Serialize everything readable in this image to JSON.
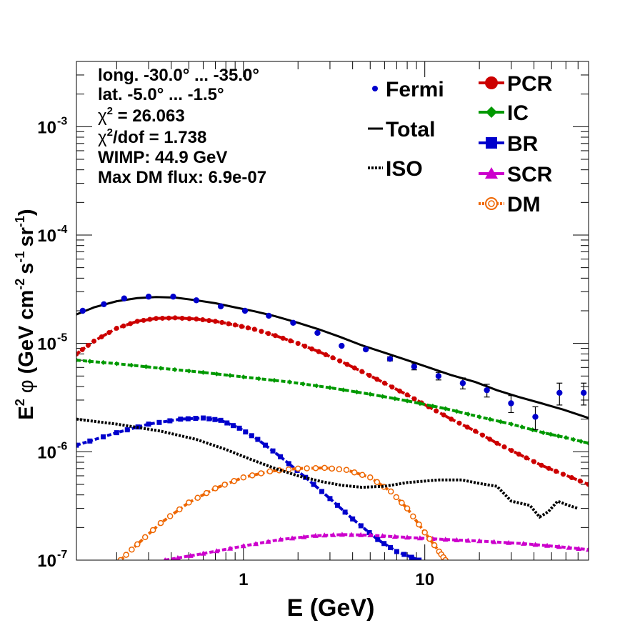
{
  "chart_data": {
    "type": "scatter",
    "xscale": "log",
    "yscale": "log",
    "xlim": [
      0.12,
      80
    ],
    "ylim": [
      1e-07,
      0.004
    ],
    "xlabel": "E (GeV)",
    "ylabel": {
      "e_label": "E",
      "e_sup": "2",
      "phi": "φ",
      "units_open": "(GeV cm",
      "cm_sup": "-2",
      "s_part": "s",
      "s_sup": "-1",
      "sr_part": "sr",
      "sr_sup": "-1",
      "close": ")"
    },
    "x_ticks": [
      {
        "value": 1,
        "label": "1"
      },
      {
        "value": 10,
        "label": "10"
      }
    ],
    "y_ticks": [
      {
        "value": 1e-07,
        "base": "10",
        "exp": "-7"
      },
      {
        "value": 1e-06,
        "base": "10",
        "exp": "-6"
      },
      {
        "value": 1e-05,
        "base": "10",
        "exp": "-5"
      },
      {
        "value": 0.0001,
        "base": "10",
        "exp": "-4"
      },
      {
        "value": 0.001,
        "base": "10",
        "exp": "-3"
      }
    ],
    "annotations": [
      {
        "text": "long. -30.0° ... -35.0°"
      },
      {
        "text": "lat. -5.0° ... -1.5°"
      },
      {
        "pre": "χ",
        "sup": "2",
        "post": " = 26.063"
      },
      {
        "pre": "χ",
        "sup": "2",
        "post": "/dof = 1.738"
      },
      {
        "text": "WIMP: 44.9 GeV"
      },
      {
        "text": "Max DM flux: 6.9e-07"
      }
    ],
    "legend_left": [
      {
        "key": "Fermi",
        "label": "Fermi"
      },
      {
        "key": "Total",
        "label": "Total"
      },
      {
        "key": "ISO",
        "label": "ISO"
      }
    ],
    "legend_right": [
      {
        "key": "PCR",
        "label": "PCR"
      },
      {
        "key": "IC",
        "label": "IC"
      },
      {
        "key": "BR",
        "label": "BR"
      },
      {
        "key": "SCR",
        "label": "SCR"
      },
      {
        "key": "DM",
        "label": "DM"
      }
    ],
    "fermi": {
      "color": "#0000cc",
      "x": [
        0.13,
        0.17,
        0.22,
        0.3,
        0.41,
        0.55,
        0.75,
        1.02,
        1.38,
        1.88,
        2.56,
        3.48,
        4.73,
        6.43,
        8.74,
        11.9,
        16.2,
        22.0,
        29.9,
        40.7,
        55.3,
        75.2
      ],
      "y": [
        2e-05,
        2.3e-05,
        2.6e-05,
        2.7e-05,
        2.7e-05,
        2.5e-05,
        2.2e-05,
        2e-05,
        1.8e-05,
        1.55e-05,
        1.25e-05,
        9.5e-06,
        8.8e-06,
        7.2e-06,
        6.1e-06,
        5e-06,
        4.3e-06,
        3.7e-06,
        2.8e-06,
        2.1e-06,
        3.5e-06,
        3.5e-06
      ],
      "err": [
        0,
        0,
        0,
        0,
        0,
        0,
        0,
        0,
        0,
        0,
        0,
        0,
        0,
        3e-07,
        4e-07,
        4e-07,
        5e-07,
        5e-07,
        5e-07,
        5e-07,
        8e-07,
        8e-07
      ]
    },
    "series": [
      {
        "name": "Total",
        "color": "#000000",
        "style": "solid",
        "marker": "none",
        "x": [
          0.12,
          0.15,
          0.2,
          0.26,
          0.33,
          0.42,
          0.55,
          0.7,
          0.9,
          1.15,
          1.5,
          2.0,
          2.6,
          3.4,
          4.5,
          6.0,
          8.0,
          10.5,
          14,
          19,
          25,
          33,
          44,
          58,
          80
        ],
        "y": [
          1.85e-05,
          2.15e-05,
          2.45e-05,
          2.62e-05,
          2.68e-05,
          2.65e-05,
          2.5e-05,
          2.35e-05,
          2.15e-05,
          1.98e-05,
          1.78e-05,
          1.55e-05,
          1.35e-05,
          1.15e-05,
          9.6e-06,
          8.2e-06,
          7e-06,
          6e-06,
          5.1e-06,
          4.4e-06,
          3.7e-06,
          3.2e-06,
          2.8e-06,
          2.45e-06,
          2.05e-06
        ]
      },
      {
        "name": "PCR",
        "color": "#cc0000",
        "style": "dashed",
        "marker": "circle",
        "x": [
          0.12,
          0.15,
          0.2,
          0.26,
          0.33,
          0.42,
          0.55,
          0.7,
          0.9,
          1.15,
          1.5,
          2.0,
          2.6,
          3.4,
          4.5,
          6.0,
          8.0,
          10.5,
          14,
          19,
          25,
          33,
          44,
          58,
          80
        ],
        "y": [
          8e-06,
          1.05e-05,
          1.38e-05,
          1.6e-05,
          1.7e-05,
          1.72e-05,
          1.68e-05,
          1.6e-05,
          1.48e-05,
          1.35e-05,
          1.18e-05,
          1e-05,
          8.4e-06,
          6.9e-06,
          5.5e-06,
          4.3e-06,
          3.35e-06,
          2.6e-06,
          2e-06,
          1.55e-06,
          1.2e-06,
          9.5e-07,
          7.5e-07,
          6.2e-07,
          5e-07
        ]
      },
      {
        "name": "IC",
        "color": "#009900",
        "style": "dashed",
        "marker": "diamond",
        "x": [
          0.12,
          0.2,
          0.35,
          0.6,
          1.0,
          1.8,
          3.0,
          5.0,
          8.0,
          13,
          20,
          30,
          45,
          60,
          80
        ],
        "y": [
          7e-06,
          6.5e-06,
          5.9e-06,
          5.4e-06,
          4.9e-06,
          4.4e-06,
          3.9e-06,
          3.4e-06,
          2.95e-06,
          2.5e-06,
          2.1e-06,
          1.8e-06,
          1.5e-06,
          1.35e-06,
          1.2e-06
        ]
      },
      {
        "name": "BR",
        "color": "#0000cc",
        "style": "dashed",
        "marker": "square",
        "x": [
          0.12,
          0.2,
          0.3,
          0.45,
          0.6,
          0.75,
          0.95,
          1.2,
          1.6,
          2.2,
          3.0,
          4.0,
          5.5,
          7.0,
          9.3
        ],
        "y": [
          1.15e-06,
          1.5e-06,
          1.8e-06,
          2e-06,
          2.05e-06,
          1.95e-06,
          1.65e-06,
          1.3e-06,
          9e-07,
          5.8e-07,
          3.7e-07,
          2.4e-07,
          1.55e-07,
          1.2e-07,
          1e-07
        ]
      },
      {
        "name": "SCR",
        "color": "#cc00cc",
        "style": "dashed",
        "marker": "triangle",
        "x": [
          0.37,
          0.6,
          1.0,
          1.6,
          2.5,
          3.5,
          5.0,
          8.0,
          13,
          20,
          35,
          55,
          80
        ],
        "y": [
          1e-07,
          1.15e-07,
          1.35e-07,
          1.55e-07,
          1.68e-07,
          1.72e-07,
          1.7e-07,
          1.62e-07,
          1.55e-07,
          1.5e-07,
          1.42e-07,
          1.33e-07,
          1.25e-07
        ]
      },
      {
        "name": "DM",
        "color": "#ee6600",
        "style": "dashed",
        "marker": "opencircle",
        "x": [
          0.21,
          0.26,
          0.35,
          0.5,
          0.7,
          1.0,
          1.4,
          2.0,
          2.8,
          3.7,
          5.0,
          6.5,
          8.0,
          10.0,
          12.0,
          13.0
        ],
        "y": [
          1e-07,
          1.4e-07,
          2.2e-07,
          3.4e-07,
          4.6e-07,
          5.8e-07,
          6.6e-07,
          7e-07,
          7.1e-07,
          6.8e-07,
          5.8e-07,
          4.3e-07,
          3e-07,
          1.8e-07,
          1.2e-07,
          1e-07
        ]
      },
      {
        "name": "ISO",
        "color": "#000000",
        "style": "dotted",
        "marker": "none",
        "x": [
          0.12,
          0.2,
          0.35,
          0.55,
          0.8,
          1.1,
          1.5,
          2.0,
          2.7,
          3.5,
          4.5,
          6.0,
          8.0,
          12,
          16,
          20,
          25,
          30,
          38,
          43,
          48,
          54,
          62,
          70
        ],
        "y": [
          2e-06,
          1.8e-06,
          1.55e-06,
          1.3e-06,
          1.05e-06,
          8.5e-07,
          7e-07,
          6e-07,
          5.3e-07,
          4.9e-07,
          4.7e-07,
          4.8e-07,
          5.2e-07,
          5.5e-07,
          5.5e-07,
          5.1e-07,
          4.8e-07,
          3.5e-07,
          3.2e-07,
          2.5e-07,
          2.8e-07,
          3.5e-07,
          3.2e-07,
          3e-07
        ]
      }
    ]
  }
}
